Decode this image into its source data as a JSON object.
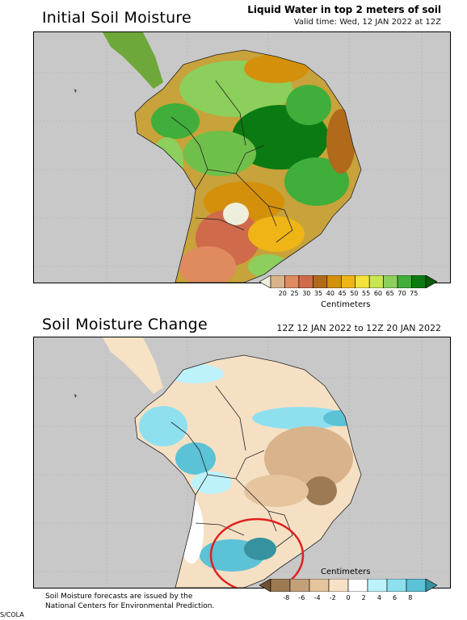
{
  "panel_top": {
    "title": "Initial Soil Moisture",
    "subtitle": "Liquid Water in top 2 meters of soil",
    "valid_time": "Valid time: Wed, 12 JAN 2022 at 12Z",
    "colorbar": {
      "unit": "Centimeters",
      "ticks": [
        "20",
        "25",
        "30",
        "35",
        "40",
        "45",
        "50",
        "55",
        "60",
        "65",
        "70",
        "75"
      ],
      "colors": [
        "#eeeedd",
        "#d9b38c",
        "#e08a60",
        "#cf6a4a",
        "#b06a1a",
        "#d4900a",
        "#efb516",
        "#f3e33a",
        "#c8e650",
        "#8ccf5c",
        "#3fae3a",
        "#0b7a12",
        "#0a5a0a"
      ]
    }
  },
  "panel_bottom": {
    "title": "Soil Moisture Change",
    "period": "12Z 12 JAN 2022 to 12Z 20 JAN 2022",
    "colorbar": {
      "unit": "Centimeters",
      "ticks": [
        "-8",
        "-6",
        "-4",
        "-2",
        "0",
        "2",
        "4",
        "6",
        "8"
      ],
      "colors": [
        "#6e5030",
        "#9c7a54",
        "#c4a07a",
        "#e5c49e",
        "#f8e2c6",
        "#ffffff",
        "#bdf2fa",
        "#8ee0ee",
        "#5cc2d6",
        "#36929f"
      ]
    }
  },
  "footer": {
    "line1": "Soil Moisture forecasts are issued by the",
    "line2": "National Centers for Environmental Prediction.",
    "credit": "S/COLA"
  }
}
